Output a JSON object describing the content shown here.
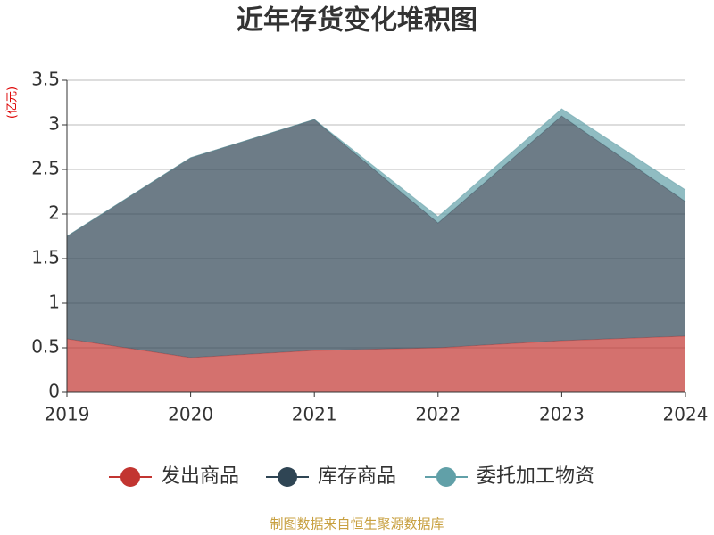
{
  "chart_data": {
    "type": "stacked_area",
    "title": "近年存货变化堆积图",
    "y_label": "(亿元)",
    "categories": [
      "2019",
      "2020",
      "2021",
      "2022",
      "2023",
      "2024"
    ],
    "series": [
      {
        "name": "发出商品",
        "color": "#c23531",
        "values": [
          0.6,
          0.39,
          0.47,
          0.5,
          0.58,
          0.63
        ]
      },
      {
        "name": "库存商品",
        "color": "#2f4554",
        "values": [
          1.15,
          2.24,
          2.59,
          1.4,
          2.52,
          1.51
        ]
      },
      {
        "name": "委托加工物资",
        "color": "#61a0a8",
        "values": [
          0,
          0,
          0,
          0.07,
          0.08,
          0.13
        ]
      }
    ],
    "ylim": [
      0,
      3.5
    ],
    "yticks": [
      0,
      0.5,
      1,
      1.5,
      2,
      2.5,
      3,
      3.5
    ],
    "grid": true,
    "source": "制图数据来自恒生聚源数据库"
  }
}
